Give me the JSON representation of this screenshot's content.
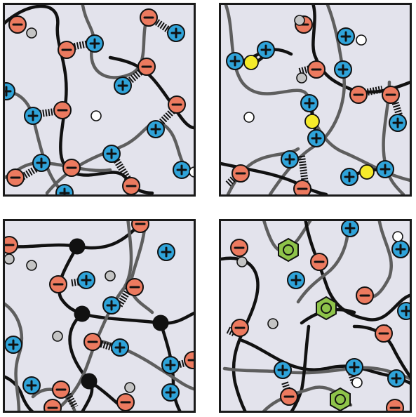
{
  "figure": {
    "panels": [
      {
        "id": "p1",
        "description_name": "panel-ionic-crosslinks"
      },
      {
        "id": "p2",
        "description_name": "panel-metal-ion-coordination"
      },
      {
        "id": "p3",
        "description_name": "panel-covalent-crosslinks"
      },
      {
        "id": "p4",
        "description_name": "panel-aromatic-stacking"
      }
    ],
    "colors": {
      "background": "#e3e3ec",
      "negative_charge": "#ec7a5f",
      "positive_charge": "#2fa3d9",
      "chain_dark": "#111111",
      "chain_grey": "#5e5e5e",
      "counterion_white": "#ffffff",
      "counterion_grey": "#c4c4c4",
      "metal_ion": "#f5ea2a",
      "aromatic_ring": "#8ec34a",
      "crosslink_node": "#111111"
    },
    "icons": [
      "negative-charge-icon",
      "positive-charge-icon",
      "counterion-icon",
      "metal-ion-icon",
      "crosslink-node-icon",
      "benzene-ring-icon"
    ]
  }
}
